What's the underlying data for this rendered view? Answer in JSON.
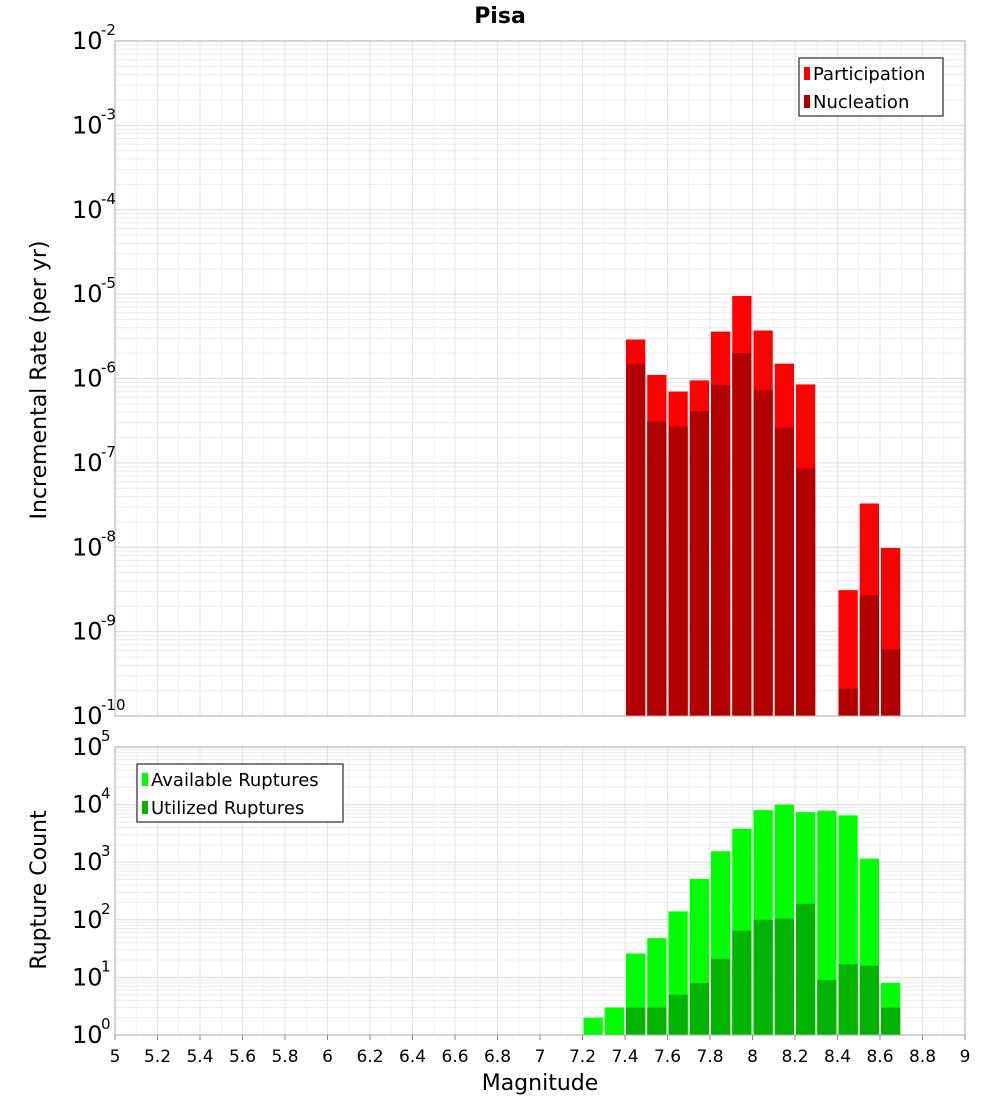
{
  "title": "Pisa",
  "chart_data": [
    {
      "type": "bar",
      "ylabel": "Incremental Rate (per yr)",
      "yscale": "log",
      "ylim_exponents": [
        -10,
        -2
      ],
      "ytick_base": "10",
      "ytick_exponents": [
        "-10",
        "-9",
        "-8",
        "-7",
        "-6",
        "-5",
        "-4",
        "-3",
        "-2"
      ],
      "xlim": [
        5,
        9
      ],
      "grid": true,
      "legend_position": "top-right",
      "series": [
        {
          "name": "Participation",
          "color": "#ff0000",
          "x": [
            7.45,
            7.55,
            7.65,
            7.75,
            7.85,
            7.95,
            8.05,
            8.15,
            8.25,
            8.45,
            8.55,
            8.65
          ],
          "values": [
            2.9e-06,
            1.1e-06,
            7e-07,
            9.5e-07,
            3.6e-06,
            9.5e-06,
            3.7e-06,
            1.5e-06,
            8.5e-07,
            3.1e-09,
            3.3e-08,
            9.8e-09
          ]
        },
        {
          "name": "Nucleation",
          "color": "#b20000",
          "x": [
            7.45,
            7.55,
            7.65,
            7.75,
            7.85,
            7.95,
            8.05,
            8.15,
            8.25,
            8.45,
            8.55,
            8.65
          ],
          "values": [
            1.5e-06,
            3.1e-07,
            2.7e-07,
            4.1e-07,
            8.4e-07,
            2e-06,
            7.3e-07,
            2.6e-07,
            8.6e-08,
            2.1e-10,
            2.7e-09,
            6.2e-10
          ]
        }
      ]
    },
    {
      "type": "bar",
      "xlabel": "Magnitude",
      "ylabel": "Rupture Count",
      "yscale": "log",
      "ylim_exponents": [
        0,
        5
      ],
      "ytick_base": "10",
      "ytick_exponents": [
        "0",
        "1",
        "2",
        "3",
        "4",
        "5"
      ],
      "xlim": [
        5,
        9
      ],
      "xtick_labels": [
        "5",
        "5.2",
        "5.4",
        "5.6",
        "5.8",
        "6",
        "6.2",
        "6.4",
        "6.6",
        "6.8",
        "7",
        "7.2",
        "7.4",
        "7.6",
        "7.8",
        "8",
        "8.2",
        "8.4",
        "8.6",
        "8.8",
        "9"
      ],
      "grid": true,
      "legend_position": "top-left",
      "series": [
        {
          "name": "Available Ruptures",
          "color": "#00ff00",
          "x": [
            7.25,
            7.35,
            7.45,
            7.55,
            7.65,
            7.75,
            7.85,
            7.95,
            8.05,
            8.15,
            8.25,
            8.35,
            8.45,
            8.55,
            8.65
          ],
          "values": [
            2,
            3,
            26,
            48,
            140,
            510,
            1550,
            3800,
            8000,
            10000,
            7400,
            7800,
            6500,
            1150,
            8
          ]
        },
        {
          "name": "Utilized Ruptures",
          "color": "#00b400",
          "x": [
            7.45,
            7.55,
            7.65,
            7.75,
            7.85,
            7.95,
            8.05,
            8.15,
            8.25,
            8.35,
            8.45,
            8.55,
            8.65
          ],
          "values": [
            3,
            3,
            5,
            8,
            21,
            65,
            100,
            105,
            190,
            9,
            17,
            16,
            3
          ]
        }
      ]
    }
  ]
}
